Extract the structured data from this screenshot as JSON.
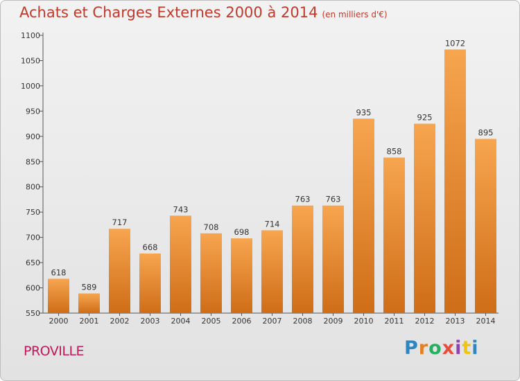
{
  "title": "Achats et Charges Externes 2000 à 2014",
  "subtitle": "(en milliers d'€)",
  "city": "PROVILLE",
  "logo": {
    "letters": [
      "P",
      "r",
      "o",
      "x",
      "i",
      "t",
      "i"
    ],
    "colors": [
      "#2e86c1",
      "#e67e22",
      "#27ae60",
      "#e74c3c",
      "#8e44ad",
      "#f1c40f",
      "#2e86c1"
    ]
  },
  "colors": {
    "bar_top": "#f7a54f",
    "bar_bottom": "#cf6d18",
    "title": "#c0392b",
    "city": "#c2185b"
  },
  "chart_data": {
    "type": "bar",
    "categories": [
      "2000",
      "2001",
      "2002",
      "2003",
      "2004",
      "2005",
      "2006",
      "2007",
      "2008",
      "2009",
      "2010",
      "2011",
      "2012",
      "2013",
      "2014"
    ],
    "values": [
      618,
      589,
      717,
      668,
      743,
      708,
      698,
      714,
      763,
      763,
      935,
      858,
      925,
      1072,
      895
    ],
    "ylim": [
      550,
      1100
    ],
    "yticks": [
      550,
      600,
      650,
      700,
      750,
      800,
      850,
      900,
      950,
      1000,
      1050,
      1100
    ],
    "grid": false
  }
}
